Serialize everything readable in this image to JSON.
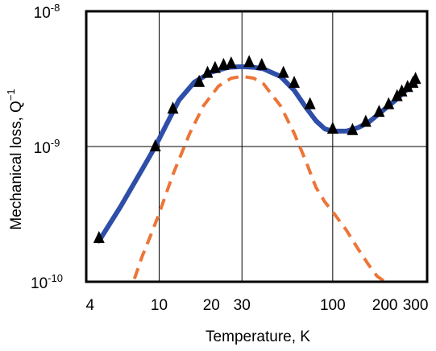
{
  "chart_data": {
    "type": "line",
    "xlabel": "Temperature, K",
    "ylabel": "Mechanical loss, Q",
    "ylabel_superscript": "−1",
    "x_scale": "log",
    "y_scale": "log",
    "xlim": [
      3.8,
      350
    ],
    "ylim": [
      1e-10,
      1e-08
    ],
    "grid": true,
    "x_ticks": [
      {
        "value": 4,
        "label": "4"
      },
      {
        "value": 10,
        "label": "10"
      },
      {
        "value": 20,
        "label": "20"
      },
      {
        "value": 30,
        "label": "30"
      },
      {
        "value": 100,
        "label": "100"
      },
      {
        "value": 200,
        "label": "200"
      },
      {
        "value": 300,
        "label": "300"
      }
    ],
    "y_ticks": [
      {
        "value": 1e-10,
        "base": "10",
        "exp": "-10"
      },
      {
        "value": 1e-09,
        "base": "10",
        "exp": "-9"
      },
      {
        "value": 1e-08,
        "base": "10",
        "exp": "-8"
      }
    ],
    "x_gridlines": [
      10,
      30,
      100
    ],
    "y_gridlines": [
      1e-09
    ],
    "colors": {
      "fit": "#2e4ea8",
      "component": "#ec7538",
      "markers": "#000000"
    },
    "series": [
      {
        "style": "markers-triangle",
        "x": [
          4.5,
          9.5,
          12,
          17,
          19,
          21,
          23.5,
          26,
          33,
          39,
          52,
          60,
          74,
          100,
          130,
          155,
          185,
          210,
          235,
          250,
          270,
          290,
          300
        ],
        "y": [
          2.1e-10,
          1e-09,
          1.9e-09,
          3e-09,
          3.5e-09,
          3.8e-09,
          4e-09,
          4.1e-09,
          4.2e-09,
          4e-09,
          3.5e-09,
          2.95e-09,
          2.05e-09,
          1.35e-09,
          1.32e-09,
          1.52e-09,
          1.8e-09,
          2.05e-09,
          2.35e-09,
          2.55e-09,
          2.75e-09,
          2.95e-09,
          3.15e-09
        ]
      },
      {
        "style": "solid-line",
        "x": [
          4.5,
          6,
          8,
          9.5,
          11,
          13,
          16,
          20,
          25,
          30,
          35,
          40,
          50,
          60,
          70,
          80,
          90,
          100,
          120,
          140,
          160,
          180,
          200,
          230,
          260,
          300
        ],
        "y": [
          2e-10,
          3.6e-10,
          6.8e-10,
          1e-09,
          1.45e-09,
          2.2e-09,
          3e-09,
          3.55e-09,
          3.85e-09,
          3.9e-09,
          3.85e-09,
          3.75e-09,
          3.3e-09,
          2.6e-09,
          1.95e-09,
          1.55e-09,
          1.35e-09,
          1.3e-09,
          1.3e-09,
          1.38e-09,
          1.5e-09,
          1.7e-09,
          1.9e-09,
          2.2e-09,
          2.55e-09,
          3e-09
        ]
      },
      {
        "style": "dashed-line",
        "x": [
          7.2,
          8,
          9,
          10,
          12,
          15,
          18,
          22,
          26,
          30,
          35,
          40,
          50,
          60,
          70,
          80,
          90,
          100,
          120,
          140,
          160,
          180,
          200
        ],
        "y": [
          1.05e-10,
          1.55e-10,
          2.25e-10,
          3.2e-10,
          6.2e-10,
          1.25e-09,
          2e-09,
          2.8e-09,
          3.2e-09,
          3.3e-09,
          3.2e-09,
          2.9e-09,
          2e-09,
          1.25e-09,
          7.8e-10,
          5e-10,
          3.9e-10,
          3.3e-10,
          2.4e-10,
          1.75e-10,
          1.35e-10,
          1.1e-10,
          1e-10
        ]
      }
    ]
  }
}
